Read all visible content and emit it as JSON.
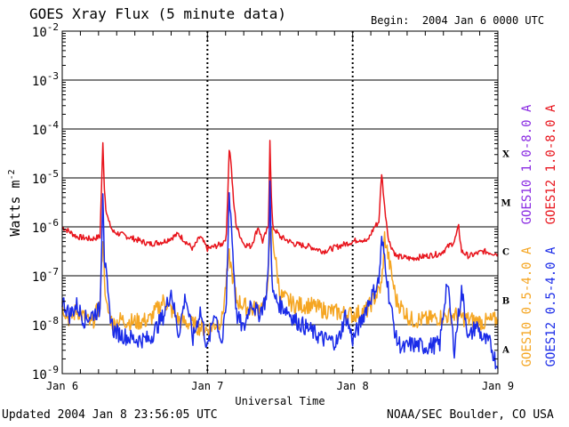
{
  "header": {
    "title": "GOES Xray Flux (5 minute data)",
    "begin_label": "Begin:",
    "begin_value": "2004 Jan 6 0000 UTC"
  },
  "footer": {
    "updated": "Updated 2004 Jan  8 23:56:05 UTC",
    "credit": "NOAA/SEC Boulder, CO USA"
  },
  "chart_data": {
    "type": "line",
    "title": "GOES Xray Flux (5 minute data)",
    "xlabel": "Universal Time",
    "ylabel": "Watts m",
    "ylabel_superscript": "-2",
    "yscale": "log",
    "ylim_exponents": [
      -9,
      -2
    ],
    "y_tick_base": "10",
    "y_tick_exponents": [
      "-2",
      "-3",
      "-4",
      "-5",
      "-6",
      "-7",
      "-8",
      "-9"
    ],
    "x_ticks": [
      "Jan 6",
      "Jan 7",
      "Jan 8",
      "Jan 9"
    ],
    "x_range_days": [
      0,
      3
    ],
    "flare_classes": [
      {
        "label": "X",
        "exponent": -4
      },
      {
        "label": "M",
        "exponent": -5
      },
      {
        "label": "C",
        "exponent": -6
      },
      {
        "label": "B",
        "exponent": -7
      },
      {
        "label": "A",
        "exponent": -8
      }
    ],
    "legend": [
      {
        "label": "GOES10 1.0-8.0 A",
        "color": "#8a2be2"
      },
      {
        "label": "GOES12 1.0-8.0 A",
        "color": "#e8141c"
      },
      {
        "label": "GOES10 0.5-4.0 A",
        "color": "#f5a623"
      },
      {
        "label": "GOES12 0.5-4.0 A",
        "color": "#1a2be8"
      }
    ],
    "series": [
      {
        "name": "GOES12 1.0-8.0 A",
        "color": "#e8141c",
        "x": [
          0,
          0.05,
          0.1,
          0.2,
          0.26,
          0.28,
          0.29,
          0.3,
          0.32,
          0.35,
          0.4,
          0.5,
          0.6,
          0.7,
          0.8,
          0.85,
          0.9,
          0.95,
          1.0,
          1.05,
          1.1,
          1.13,
          1.15,
          1.16,
          1.18,
          1.2,
          1.25,
          1.3,
          1.35,
          1.38,
          1.42,
          1.43,
          1.44,
          1.45,
          1.5,
          1.6,
          1.7,
          1.8,
          1.9,
          2.0,
          2.05,
          2.1,
          2.15,
          2.18,
          2.2,
          2.22,
          2.25,
          2.3,
          2.4,
          2.5,
          2.6,
          2.7,
          2.73,
          2.75,
          2.8,
          2.9,
          3.0
        ],
        "y": [
          -6.0,
          -6.1,
          -6.2,
          -6.25,
          -6.2,
          -4.3,
          -5.2,
          -5.6,
          -5.9,
          -6.1,
          -6.15,
          -6.25,
          -6.35,
          -6.3,
          -6.15,
          -6.3,
          -6.45,
          -6.2,
          -6.45,
          -6.4,
          -6.35,
          -6.2,
          -4.4,
          -4.6,
          -5.5,
          -6.0,
          -6.35,
          -6.4,
          -6.0,
          -6.3,
          -6.0,
          -4.2,
          -5.4,
          -6.0,
          -6.2,
          -6.35,
          -6.4,
          -6.5,
          -6.4,
          -6.3,
          -6.25,
          -6.3,
          -6.0,
          -5.9,
          -4.9,
          -5.6,
          -6.3,
          -6.6,
          -6.65,
          -6.6,
          -6.55,
          -6.3,
          -6.0,
          -6.5,
          -6.6,
          -6.5,
          -6.55
        ]
      },
      {
        "name": "GOES10 0.5-4.0 A",
        "color": "#f5a623",
        "x": [
          0,
          0.05,
          0.1,
          0.2,
          0.26,
          0.28,
          0.3,
          0.35,
          0.4,
          0.5,
          0.6,
          0.7,
          0.8,
          0.9,
          1.0,
          1.1,
          1.15,
          1.2,
          1.3,
          1.4,
          1.44,
          1.5,
          1.6,
          1.7,
          1.8,
          1.9,
          2.0,
          2.1,
          2.2,
          2.22,
          2.3,
          2.4,
          2.5,
          2.6,
          2.7,
          2.8,
          2.9,
          3.0
        ],
        "y": [
          -7.6,
          -7.9,
          -7.7,
          -8.0,
          -7.6,
          -6.2,
          -7.6,
          -8.0,
          -7.9,
          -7.95,
          -7.9,
          -7.5,
          -7.9,
          -8.0,
          -8.1,
          -7.9,
          -6.6,
          -7.5,
          -7.7,
          -7.6,
          -6.0,
          -7.4,
          -7.6,
          -7.6,
          -7.7,
          -7.75,
          -7.8,
          -7.7,
          -7.2,
          -6.2,
          -7.5,
          -7.9,
          -7.9,
          -7.85,
          -7.8,
          -7.9,
          -7.95,
          -7.9
        ]
      },
      {
        "name": "GOES12 0.5-4.0 A",
        "color": "#1a2be8",
        "x": [
          0,
          0.05,
          0.1,
          0.15,
          0.2,
          0.26,
          0.28,
          0.29,
          0.3,
          0.32,
          0.35,
          0.4,
          0.5,
          0.6,
          0.7,
          0.75,
          0.8,
          0.85,
          0.9,
          0.95,
          1.0,
          1.05,
          1.1,
          1.13,
          1.15,
          1.16,
          1.18,
          1.2,
          1.25,
          1.3,
          1.35,
          1.4,
          1.42,
          1.43,
          1.44,
          1.45,
          1.5,
          1.55,
          1.6,
          1.7,
          1.8,
          1.9,
          1.95,
          2.0,
          2.05,
          2.1,
          2.15,
          2.18,
          2.2,
          2.22,
          2.25,
          2.3,
          2.35,
          2.4,
          2.5,
          2.6,
          2.65,
          2.7,
          2.75,
          2.8,
          2.85,
          2.9,
          2.95,
          3.0
        ],
        "y": [
          -7.5,
          -7.8,
          -7.6,
          -7.9,
          -7.8,
          -7.7,
          -5.2,
          -6.6,
          -6.9,
          -7.6,
          -8.1,
          -8.2,
          -8.3,
          -8.3,
          -7.8,
          -7.3,
          -8.2,
          -7.4,
          -8.3,
          -7.7,
          -8.5,
          -7.7,
          -8.4,
          -7.6,
          -5.3,
          -5.7,
          -6.8,
          -7.8,
          -8.1,
          -7.5,
          -7.8,
          -7.5,
          -6.9,
          -5.1,
          -6.5,
          -7.4,
          -7.6,
          -7.7,
          -7.9,
          -8.1,
          -8.3,
          -8.35,
          -7.8,
          -8.3,
          -8.0,
          -7.6,
          -7.3,
          -7.1,
          -6.3,
          -6.6,
          -7.4,
          -8.3,
          -8.5,
          -8.4,
          -8.45,
          -8.4,
          -7.1,
          -8.5,
          -7.3,
          -8.3,
          -8.0,
          -8.3,
          -8.4,
          -8.9
        ]
      },
      {
        "name": "GOES10 1.0-8.0 A",
        "color": "#8a2be2",
        "x": [],
        "y": []
      }
    ]
  }
}
